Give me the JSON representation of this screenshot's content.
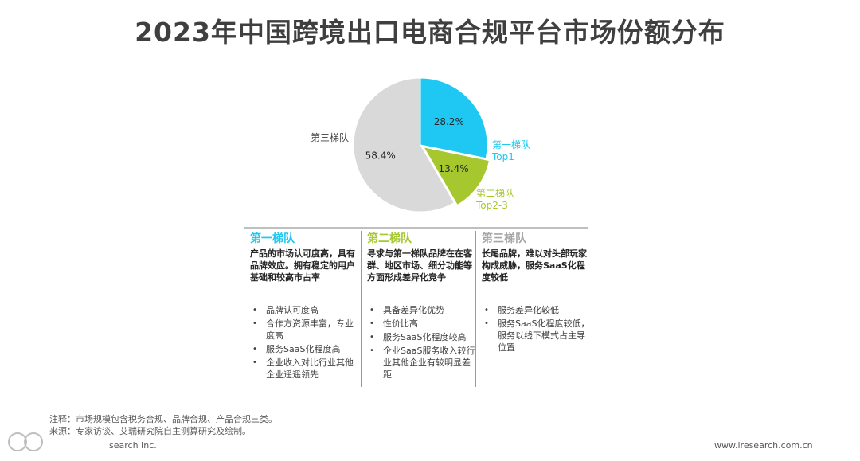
{
  "title": "2023年中国跨境出口电商合规平台市场份额分布",
  "chart_data": {
    "type": "pie",
    "slices": [
      {
        "label": "第一梯队",
        "sublabel": "Top1",
        "value": 28.2,
        "value_label": "28.2%",
        "color": "#1ec8f2"
      },
      {
        "label": "第二梯队",
        "sublabel": "Top2-3",
        "value": 13.4,
        "value_label": "13.4%",
        "color": "#a6c82e"
      },
      {
        "label": "第三梯队",
        "sublabel": "",
        "value": 58.4,
        "value_label": "58.4%",
        "color": "#d9d9d9"
      }
    ]
  },
  "tiers": [
    {
      "title": "第一梯队",
      "color": "#1ec8f2",
      "desc": "产品的市场认可度高，具有品牌效应。拥有稳定的用户基础和较高市占率",
      "items": [
        "品牌认可度高",
        "合作方资源丰富，专业度高",
        "服务SaaS化程度高",
        "企业收入对比行业其他企业遥遥领先"
      ]
    },
    {
      "title": "第二梯队",
      "color": "#a6c82e",
      "desc": "寻求与第一梯队品牌在在客群、地区市场、细分功能等方面形成差异化竞争",
      "items": [
        "具备差异化优势",
        "性价比高",
        "服务SaaS化程度较高",
        "企业SaaS服务收入较行业其他企业有较明显差距"
      ]
    },
    {
      "title": "第三梯队",
      "color": "#a6a6a6",
      "desc": "长尾品牌，难以对头部玩家构成威胁，服务SaaS化程度较低",
      "items": [
        "服务差异化较低",
        "服务SaaS化程度较低，服务以线下模式占主导位置"
      ]
    }
  ],
  "notes": {
    "line1": "注释：市场规模包含税务合规、品牌合规、产品合规三类。",
    "line2": "来源：专家访谈、艾瑞研究院自主测算研究及绘制。"
  },
  "footer": {
    "left": "search Inc.",
    "right": "www.iresearch.com.cn"
  }
}
